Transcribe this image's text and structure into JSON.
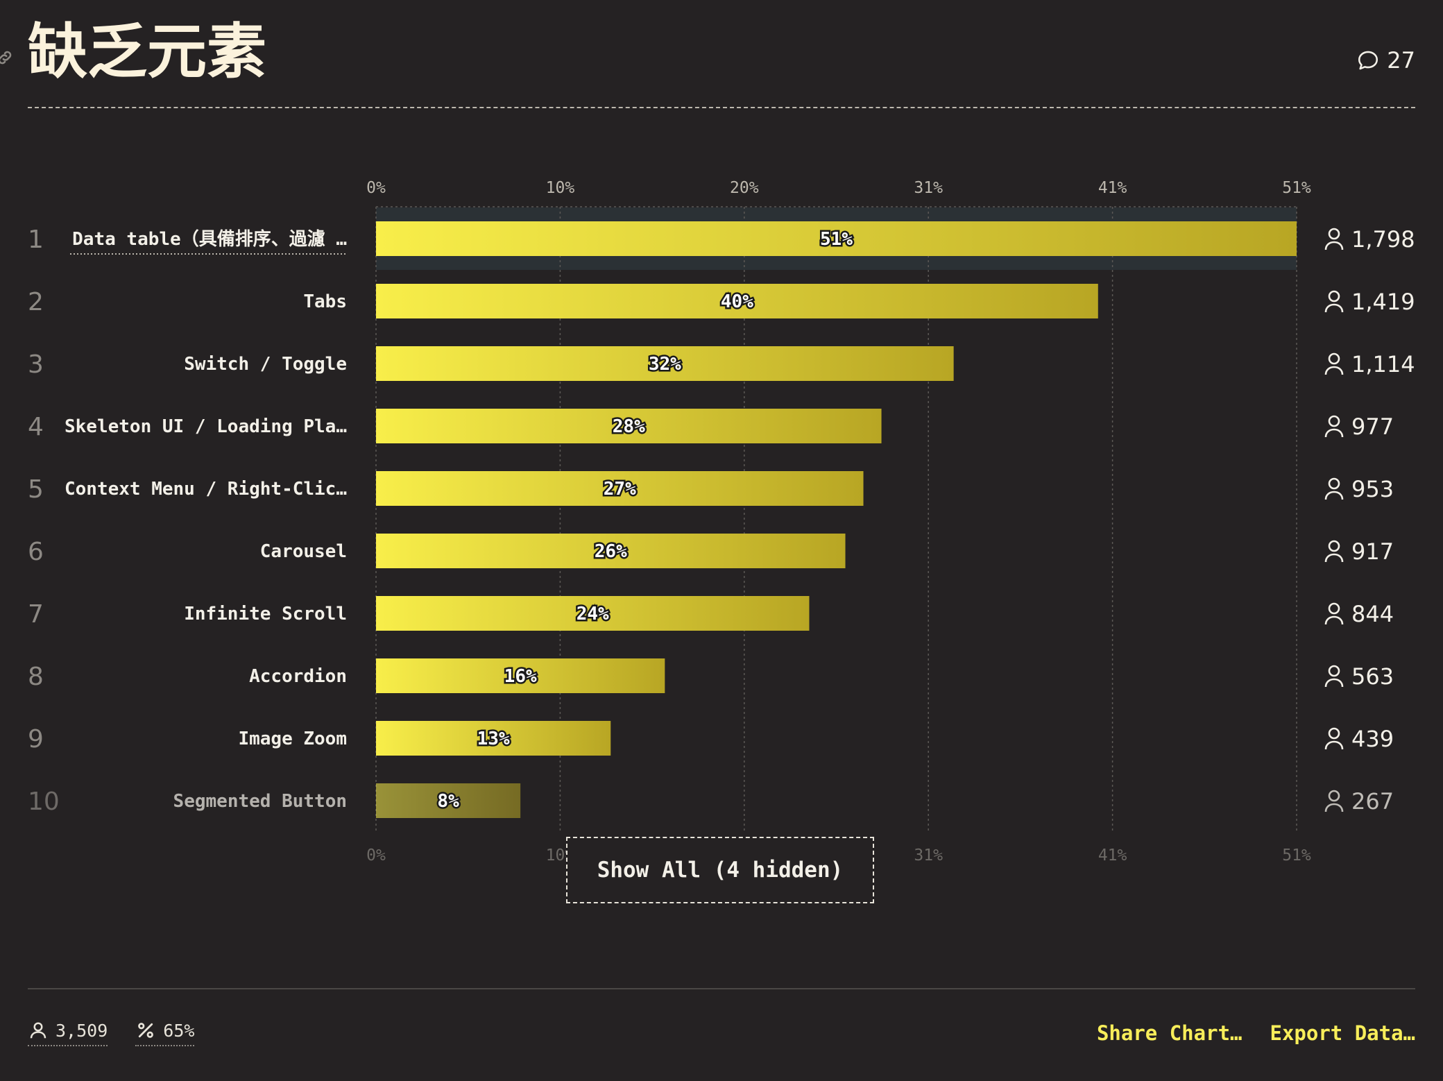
{
  "header": {
    "title": "缺乏元素",
    "comment_count": "27"
  },
  "chart_data": {
    "type": "bar",
    "orientation": "horizontal",
    "title": "缺乏元素",
    "xlim": [
      0,
      51
    ],
    "x_ticks": [
      "0%",
      "10%",
      "20%",
      "31%",
      "41%",
      "51%"
    ],
    "grid": true,
    "ranks": [
      "1",
      "2",
      "3",
      "4",
      "5",
      "6",
      "7",
      "8",
      "9",
      "10"
    ],
    "categories": [
      "Data table（具備排序、過濾 …",
      "Tabs",
      "Switch / Toggle",
      "Skeleton UI / Loading Pla…",
      "Context Menu / Right-Clic…",
      "Carousel",
      "Infinite Scroll",
      "Accordion",
      "Image Zoom",
      "Segmented Button"
    ],
    "values": [
      51,
      40,
      32,
      28,
      27,
      26,
      24,
      16,
      13,
      8
    ],
    "value_labels": [
      "51%",
      "40%",
      "32%",
      "28%",
      "27%",
      "26%",
      "24%",
      "16%",
      "13%",
      "8%"
    ],
    "counts": [
      "1,798",
      "1,419",
      "1,114",
      "977",
      "953",
      "917",
      "844",
      "563",
      "439",
      "267"
    ],
    "bar_color": "#f8ee4a",
    "bar_color_end": "#b8a624"
  },
  "show_all_label": "Show All (4 hidden)",
  "footer": {
    "respondents": "3,509",
    "percentage": "65%",
    "share_label": "Share Chart…",
    "export_label": "Export Data…"
  }
}
